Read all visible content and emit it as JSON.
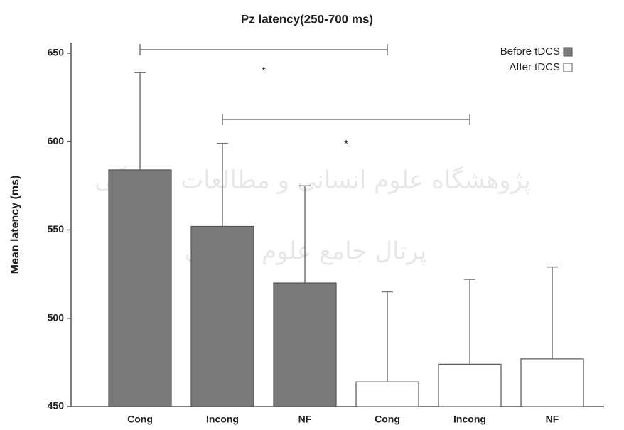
{
  "chart_data": {
    "type": "bar",
    "title": "Pz latency(250-700 ms)",
    "y_label": "Mean latency (ms)",
    "categories": [
      "Cong",
      "Incong",
      "NF",
      "Cong",
      "Incong",
      "NF"
    ],
    "series": [
      {
        "name": "Before tDCS",
        "color": "#7a7a7a",
        "values": [
          584,
          552,
          520,
          null,
          null,
          null
        ],
        "errors": [
          55,
          47,
          55,
          null,
          null,
          null
        ]
      },
      {
        "name": "After tDCS",
        "color": "#ffffff",
        "values": [
          null,
          null,
          null,
          464,
          474,
          477
        ],
        "errors": [
          null,
          null,
          null,
          51,
          48,
          52
        ]
      }
    ],
    "ylim": [
      450,
      656
    ],
    "yticks": [
      450,
      500,
      550,
      600,
      650
    ],
    "legend": "upper right",
    "annotations": [
      "*",
      "*"
    ],
    "watermark": [
      "پژوهشگاه علوم انسانی و مطالعات فرهنگی",
      "پرتال جامع علوم انسانی"
    ]
  }
}
